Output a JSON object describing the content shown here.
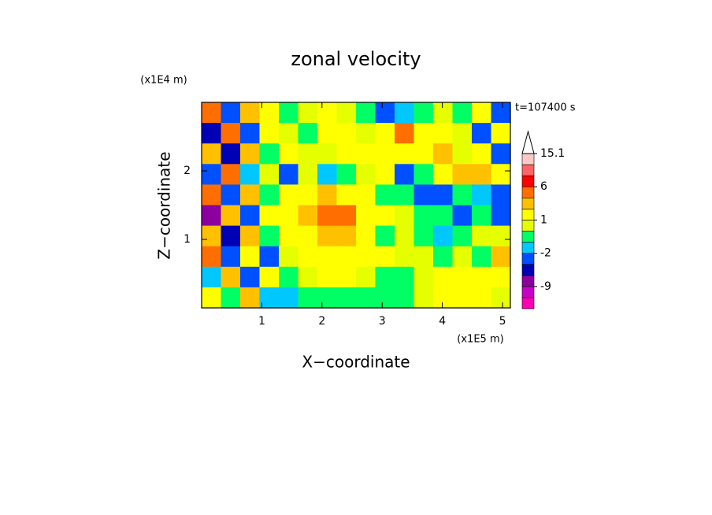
{
  "chart_data": {
    "type": "contour",
    "title": "zonal velocity",
    "x_label": "X−coordinate",
    "y_label": "Z−coordinate",
    "x_unit": "(x1E5 m)",
    "y_unit": "(x1E4 m)",
    "annotation": "t=107400 s",
    "xlim": [
      0,
      5.13
    ],
    "ylim": [
      0,
      3
    ],
    "xticks": [
      1,
      2,
      3,
      4,
      5
    ],
    "yticks": [
      1,
      2
    ],
    "levels": [
      -15,
      -12,
      -9,
      -6,
      -4,
      -2,
      -1,
      0,
      1,
      2,
      4,
      6,
      9,
      12,
      15.1
    ],
    "colors": [
      "#ff00b4",
      "#c800c8",
      "#8c00a0",
      "#0000b4",
      "#0050ff",
      "#00c8ff",
      "#00ff64",
      "#e6ff00",
      "#ffff00",
      "#ffc000",
      "#ff6e00",
      "#ff0000",
      "#ff6464",
      "#ffc8c8"
    ],
    "colorbar_ticks": [
      15.1,
      6,
      1,
      -2,
      -9
    ],
    "z": [
      [
        4,
        -3,
        3,
        1,
        -1,
        0.5,
        1.5,
        0.5,
        -0.5,
        -4,
        -1.5,
        -0.5,
        0,
        -1,
        1,
        -3
      ],
      [
        -6,
        5,
        -3,
        1.5,
        0.5,
        -0.5,
        1.5,
        1,
        0.5,
        1.5,
        4,
        1.5,
        1,
        0.5,
        -3,
        1
      ],
      [
        3,
        -6,
        2,
        -1,
        1.5,
        0,
        0.5,
        1,
        1.5,
        1.5,
        1.5,
        1.5,
        2,
        0.5,
        1.5,
        -4
      ],
      [
        -4,
        4,
        -2,
        0.5,
        -4,
        0,
        -1.5,
        -1,
        0,
        1,
        -3,
        -1,
        1.5,
        3,
        2,
        1.5
      ],
      [
        5,
        -3,
        3,
        -0.5,
        1,
        1.5,
        2,
        1.5,
        1,
        -0.5,
        -1,
        -4,
        -3,
        -1,
        -2,
        -3
      ],
      [
        -7,
        2,
        -4,
        1,
        1,
        2,
        4,
        4,
        1.5,
        1,
        0.5,
        -1,
        -0.5,
        -4,
        -1,
        -4
      ],
      [
        3,
        -5,
        2,
        -0.5,
        1,
        1.5,
        2,
        2,
        1.5,
        -1,
        0,
        -0.5,
        -1.5,
        -1,
        0,
        0.5
      ],
      [
        4,
        -3,
        1,
        -4,
        0.5,
        1.5,
        1.5,
        1.5,
        1,
        1,
        0.5,
        0,
        -0.5,
        0,
        -0.5,
        3
      ],
      [
        -2,
        3,
        -3,
        1,
        -0.5,
        0.5,
        1,
        1,
        0,
        -0.5,
        -0.5,
        0,
        1,
        1,
        1,
        1.5
      ],
      [
        1,
        -1,
        2,
        -2,
        -1.5,
        -1,
        -1,
        -0.5,
        -1,
        -0.5,
        -0.5,
        0.5,
        1.5,
        1.5,
        1.5,
        0.5
      ]
    ]
  }
}
